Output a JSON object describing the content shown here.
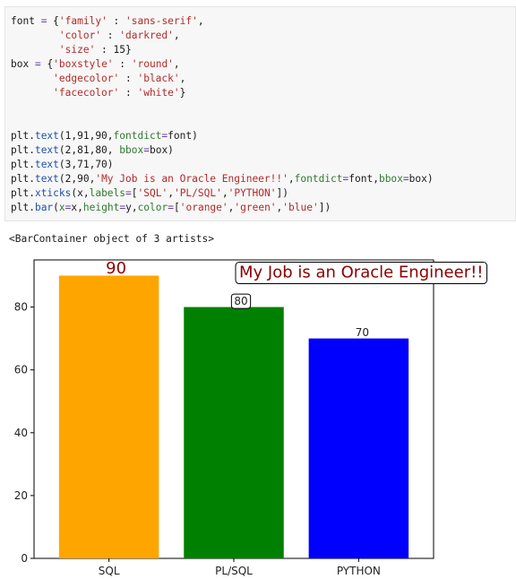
{
  "code_cell": {
    "lines": [
      "font = {'family' : 'sans-serif',",
      "        'color' : 'darkred',",
      "        'size' : 15}",
      "box = {'boxstyle' : 'round',",
      "       'edgecolor' : 'black',",
      "       'facecolor' : 'white'}",
      "",
      "",
      "plt.text(1,91,90,fontdict=font)",
      "plt.text(2,81,80, bbox=box)",
      "plt.text(3,71,70)",
      "plt.text(2,90,'My Job is an Oracle Engineer!!',fontdict=font,bbox=box)",
      "plt.xticks(x,labels=['SQL','PL/SQL','PYTHON'])",
      "plt.bar(x=x,height=y,color=['orange','green','blue'])"
    ]
  },
  "output_text": "<BarContainer object of 3 artists>",
  "colors": {
    "bar_1": "#ffa500",
    "bar_2": "#008000",
    "bar_3": "#0000ff",
    "annotation_text": "#8b0000"
  },
  "chart_data": {
    "type": "bar",
    "categories": [
      "SQL",
      "PL/SQL",
      "PYTHON"
    ],
    "values": [
      90,
      80,
      70
    ],
    "ylim": [
      0,
      95
    ],
    "yticks": [
      0,
      20,
      40,
      60,
      80
    ],
    "grid": false,
    "annotations": [
      {
        "text": "90",
        "x": 1,
        "y": 91,
        "style": "darkred-large"
      },
      {
        "text": "80",
        "x": 2,
        "y": 81,
        "style": "boxed"
      },
      {
        "text": "70",
        "x": 3,
        "y": 71,
        "style": "plain"
      },
      {
        "text": "My Job is an Oracle Engineer!!",
        "x": 2,
        "y": 90,
        "style": "darkred-large-boxed"
      }
    ]
  }
}
